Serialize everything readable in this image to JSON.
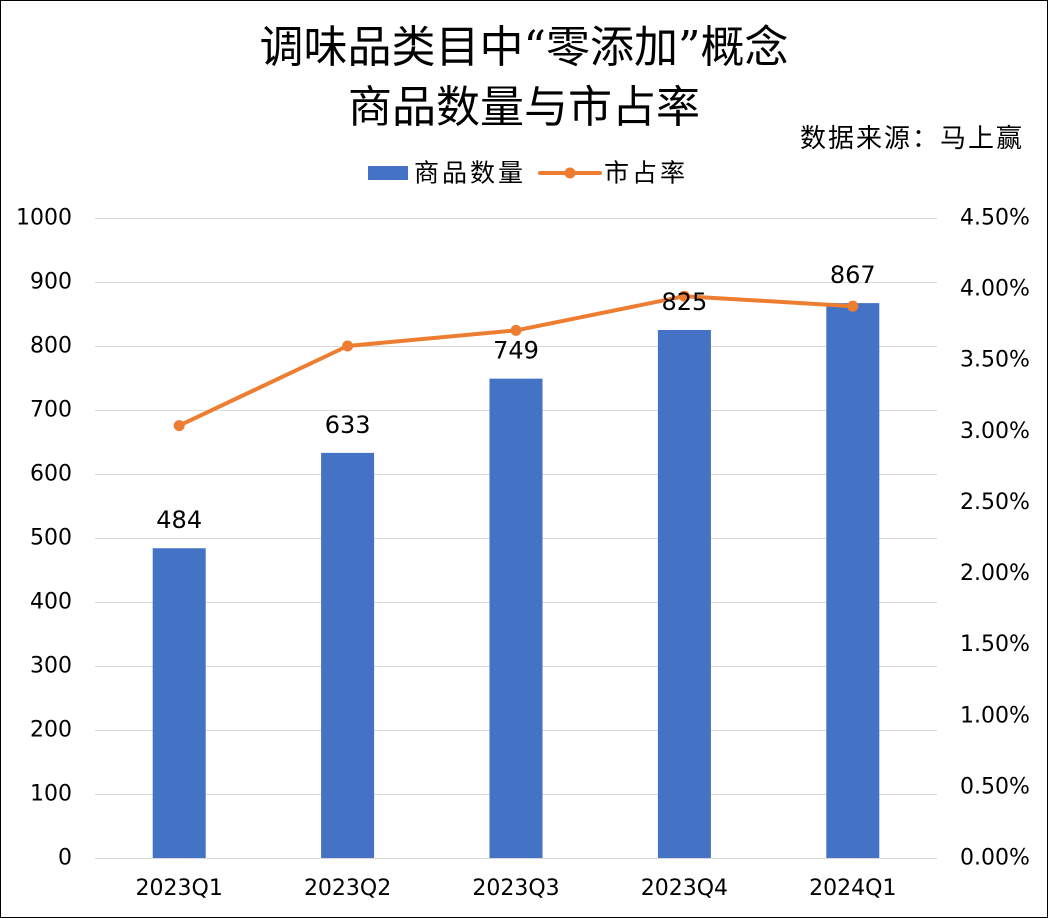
{
  "chart_data": {
    "type": "bar",
    "title": [
      "调味品类目中“零添加”概念",
      "商品数量与市占率"
    ],
    "source": "数据来源：马上赢",
    "categories": [
      "2023Q1",
      "2023Q2",
      "2023Q3",
      "2023Q4",
      "2024Q1"
    ],
    "series": [
      {
        "name": "商品数量",
        "type": "bar",
        "axis": "left",
        "color": "#4472C4",
        "data_labels": true,
        "values": [
          484,
          633,
          749,
          825,
          867
        ]
      },
      {
        "name": "市占率",
        "type": "line",
        "axis": "right",
        "marker": "circle",
        "color": "#ED7D31",
        "values": [
          3.04,
          3.6,
          3.71,
          3.95,
          3.88
        ]
      }
    ],
    "y_left": {
      "range": [
        0,
        1000
      ],
      "ticks": [
        0,
        100,
        200,
        300,
        400,
        500,
        600,
        700,
        800,
        900,
        1000
      ]
    },
    "y_right": {
      "range": [
        0,
        4.5
      ],
      "ticks": [
        0,
        0.5,
        1,
        1.5,
        2,
        2.5,
        3,
        3.5,
        4,
        4.5
      ],
      "tick_labels": [
        "0.00%",
        "0.50%",
        "1.00%",
        "1.50%",
        "2.00%",
        "2.50%",
        "3.00%",
        "3.50%",
        "4.00%",
        "4.50%"
      ]
    },
    "grid": true,
    "legend": "top"
  }
}
